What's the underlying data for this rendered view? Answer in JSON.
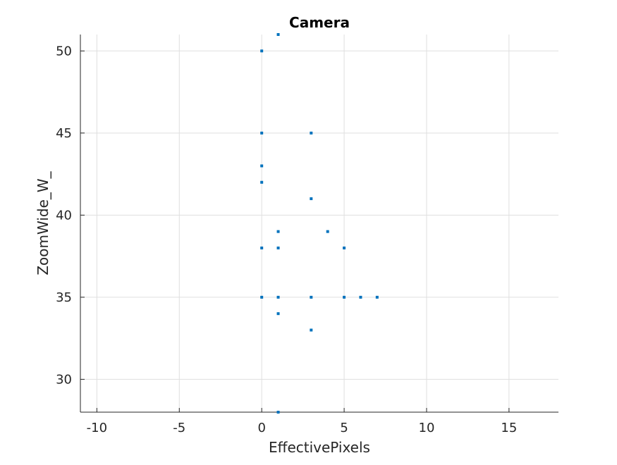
{
  "chart_data": {
    "type": "scatter",
    "title": "Camera",
    "xlabel": "EffectivePixels",
    "ylabel": "ZoomWide_W_",
    "xlim": [
      -11,
      18
    ],
    "ylim": [
      28,
      51
    ],
    "xticks": [
      -10,
      -5,
      0,
      5,
      10,
      15
    ],
    "xtick_labels": [
      "-10",
      "-5",
      "0",
      "5",
      "10",
      "15"
    ],
    "yticks": [
      30,
      35,
      40,
      45,
      50
    ],
    "ytick_labels": [
      "30",
      "35",
      "40",
      "45",
      "50"
    ],
    "grid": true,
    "legend": "none",
    "series": [
      {
        "color": "#0072BD",
        "points": [
          {
            "x": 1,
            "y": 51
          },
          {
            "x": 0,
            "y": 50
          },
          {
            "x": 0,
            "y": 45
          },
          {
            "x": 3,
            "y": 45
          },
          {
            "x": 0,
            "y": 43
          },
          {
            "x": 0,
            "y": 42
          },
          {
            "x": 3,
            "y": 41
          },
          {
            "x": 1,
            "y": 39
          },
          {
            "x": 4,
            "y": 39
          },
          {
            "x": 0,
            "y": 38
          },
          {
            "x": 1,
            "y": 38
          },
          {
            "x": 5,
            "y": 38
          },
          {
            "x": 0,
            "y": 35
          },
          {
            "x": 1,
            "y": 35
          },
          {
            "x": 3,
            "y": 35
          },
          {
            "x": 5,
            "y": 35
          },
          {
            "x": 6,
            "y": 35
          },
          {
            "x": 7,
            "y": 35
          },
          {
            "x": 1,
            "y": 34
          },
          {
            "x": 3,
            "y": 33
          },
          {
            "x": 1,
            "y": 28
          }
        ]
      }
    ]
  }
}
